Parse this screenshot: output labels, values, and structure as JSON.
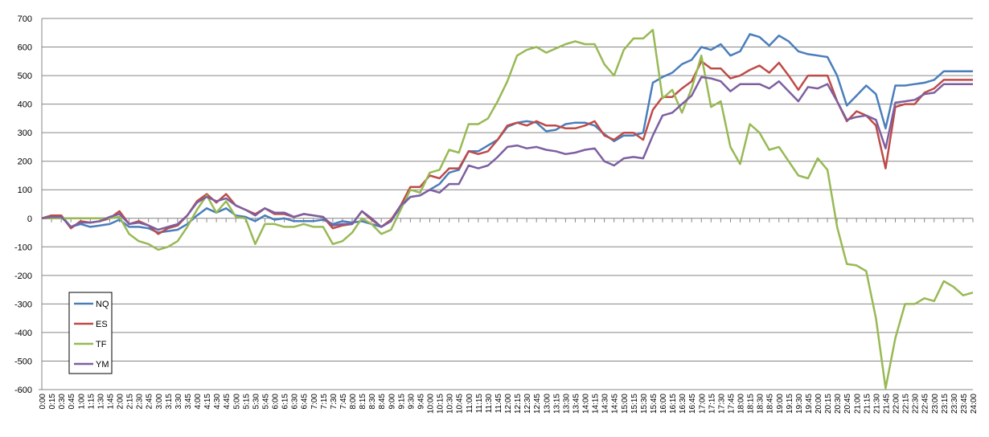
{
  "chart_data": {
    "type": "line",
    "title": "",
    "xlabel": "",
    "ylabel": "",
    "ylim": [
      -600,
      700
    ],
    "yticks": [
      -600,
      -500,
      -400,
      -300,
      -200,
      -100,
      0,
      100,
      200,
      300,
      400,
      500,
      600,
      700
    ],
    "grid": "horizontal",
    "legend_position": "bottom-left",
    "x": [
      "0:00",
      "0:15",
      "0:30",
      "0:45",
      "1:00",
      "1:15",
      "1:30",
      "1:45",
      "2:00",
      "2:15",
      "2:30",
      "2:45",
      "3:00",
      "3:15",
      "3:30",
      "3:45",
      "4:00",
      "4:15",
      "4:30",
      "4:45",
      "5:00",
      "5:15",
      "5:30",
      "5:45",
      "6:00",
      "6:15",
      "6:30",
      "6:45",
      "7:00",
      "7:15",
      "7:30",
      "7:45",
      "8:00",
      "8:15",
      "8:30",
      "8:45",
      "9:00",
      "9:15",
      "9:30",
      "9:45",
      "10:00",
      "10:15",
      "10:30",
      "10:45",
      "11:00",
      "11:15",
      "11:30",
      "11:45",
      "12:00",
      "12:15",
      "12:30",
      "12:45",
      "13:00",
      "13:15",
      "13:30",
      "13:45",
      "14:00",
      "14:15",
      "14:30",
      "14:45",
      "15:00",
      "15:15",
      "15:30",
      "15:45",
      "16:00",
      "16:15",
      "16:30",
      "16:45",
      "17:00",
      "17:15",
      "17:30",
      "17:45",
      "18:00",
      "18:15",
      "18:30",
      "18:45",
      "19:00",
      "19:15",
      "19:30",
      "19:45",
      "20:00",
      "20:15",
      "20:30",
      "20:45",
      "21:00",
      "21:15",
      "21:30",
      "21:45",
      "22:00",
      "22:15",
      "22:30",
      "22:45",
      "23:00",
      "23:15",
      "23:30",
      "23:45",
      "24:00"
    ],
    "series": [
      {
        "name": "NQ",
        "color": "#4a7ebb",
        "values": [
          0,
          10,
          10,
          -30,
          -20,
          -30,
          -25,
          -20,
          -5,
          -30,
          -30,
          -35,
          -50,
          -45,
          -40,
          -20,
          10,
          35,
          20,
          35,
          10,
          5,
          -10,
          10,
          -5,
          0,
          -10,
          -10,
          -10,
          -5,
          -20,
          -10,
          -15,
          -10,
          -20,
          -30,
          -10,
          40,
          75,
          80,
          100,
          120,
          160,
          170,
          235,
          235,
          255,
          275,
          320,
          335,
          340,
          335,
          305,
          310,
          330,
          335,
          335,
          325,
          295,
          270,
          290,
          290,
          300,
          475,
          495,
          510,
          540,
          555,
          600,
          590,
          610,
          570,
          585,
          645,
          635,
          605,
          640,
          620,
          585,
          575,
          570,
          565,
          500,
          395,
          430,
          465,
          435,
          315,
          465,
          465,
          470,
          475,
          485,
          515,
          515,
          515,
          515
        ]
      },
      {
        "name": "ES",
        "color": "#be4b48",
        "values": [
          0,
          10,
          10,
          -35,
          -10,
          -15,
          -10,
          0,
          25,
          -20,
          -10,
          -25,
          -55,
          -35,
          -25,
          10,
          60,
          85,
          55,
          85,
          45,
          30,
          15,
          35,
          15,
          15,
          5,
          15,
          10,
          5,
          -35,
          -25,
          -20,
          25,
          -5,
          -30,
          -5,
          45,
          110,
          110,
          150,
          140,
          175,
          175,
          235,
          225,
          235,
          275,
          325,
          335,
          325,
          340,
          325,
          325,
          315,
          315,
          325,
          340,
          290,
          275,
          300,
          300,
          275,
          380,
          425,
          425,
          455,
          480,
          550,
          525,
          525,
          490,
          500,
          520,
          535,
          510,
          545,
          500,
          450,
          500,
          500,
          500,
          410,
          340,
          375,
          360,
          325,
          175,
          390,
          400,
          400,
          440,
          455,
          485,
          485,
          485,
          485
        ]
      },
      {
        "name": "TF",
        "color": "#98b954",
        "values": [
          0,
          0,
          0,
          0,
          0,
          0,
          0,
          0,
          5,
          -55,
          -80,
          -90,
          -110,
          -100,
          -80,
          -30,
          30,
          80,
          20,
          60,
          5,
          0,
          -90,
          -20,
          -20,
          -30,
          -30,
          -20,
          -30,
          -30,
          -90,
          -80,
          -50,
          0,
          -20,
          -55,
          -40,
          30,
          100,
          90,
          160,
          170,
          240,
          230,
          330,
          330,
          350,
          410,
          480,
          570,
          590,
          600,
          580,
          595,
          610,
          620,
          610,
          610,
          540,
          500,
          590,
          630,
          630,
          660,
          420,
          450,
          370,
          455,
          570,
          390,
          410,
          250,
          190,
          330,
          300,
          240,
          250,
          200,
          150,
          140,
          210,
          170,
          -30,
          -160,
          -165,
          -185,
          -350,
          -595,
          -420,
          -300,
          -300,
          -280,
          -290,
          -220,
          -240,
          -270,
          -260
        ]
      },
      {
        "name": "YM",
        "color": "#7d5fa0",
        "values": [
          0,
          5,
          5,
          -30,
          -15,
          -15,
          -10,
          5,
          15,
          -20,
          -15,
          -25,
          -40,
          -30,
          -20,
          10,
          55,
          75,
          60,
          70,
          45,
          30,
          10,
          35,
          20,
          20,
          5,
          15,
          10,
          5,
          -25,
          -20,
          -20,
          25,
          0,
          -30,
          -10,
          45,
          75,
          80,
          100,
          90,
          120,
          120,
          185,
          175,
          185,
          215,
          250,
          255,
          245,
          250,
          240,
          235,
          225,
          230,
          240,
          245,
          200,
          185,
          210,
          215,
          210,
          290,
          360,
          370,
          400,
          430,
          495,
          490,
          480,
          445,
          470,
          470,
          470,
          455,
          480,
          445,
          410,
          460,
          455,
          470,
          410,
          345,
          355,
          360,
          345,
          245,
          405,
          410,
          415,
          435,
          440,
          470,
          470,
          470,
          470
        ]
      }
    ],
    "x_tick_labels": [
      "0:00",
      "0:15",
      "0:30",
      "0:45",
      "1:00",
      "1:15",
      "1:30",
      "1:45",
      "2:00",
      "2:15",
      "2:30",
      "2:45",
      "3:00",
      "3:15",
      "3:30",
      "3:45",
      "4:00",
      "4:15",
      "4:30",
      "4:45",
      "5:00",
      "5:15",
      "5:30",
      "5:45",
      "6:00",
      "6:15",
      "6:30",
      "6:45",
      "7:00",
      "7:15",
      "7:30",
      "7:45",
      "8:00",
      "8:15",
      "8:30",
      "8:45",
      "9:00",
      "9:15",
      "9:30",
      "9:45",
      "10:00",
      "10:15",
      "10:30",
      "10:45",
      "11:00",
      "11:15",
      "11:30",
      "11:45",
      "12:00",
      "12:15",
      "12:30",
      "12:45",
      "13:00",
      "13:15",
      "13:30",
      "13:45",
      "14:00",
      "14:15",
      "14:30",
      "14:45",
      "15:00",
      "15:15",
      "15:30",
      "15:45",
      "16:00",
      "16:15",
      "16:30",
      "16:45",
      "17:00",
      "17:15",
      "17:30",
      "17:45",
      "18:00",
      "18:15",
      "18:30",
      "18:45",
      "19:00",
      "19:15",
      "19:30",
      "19:45",
      "20:00",
      "20:15",
      "20:30",
      "20:45",
      "21:00",
      "21:15",
      "21:30",
      "21:45",
      "22:00",
      "22:15",
      "22:30",
      "22:45",
      "23:00",
      "23:15",
      "23:30",
      "23:45",
      "24:00"
    ]
  }
}
